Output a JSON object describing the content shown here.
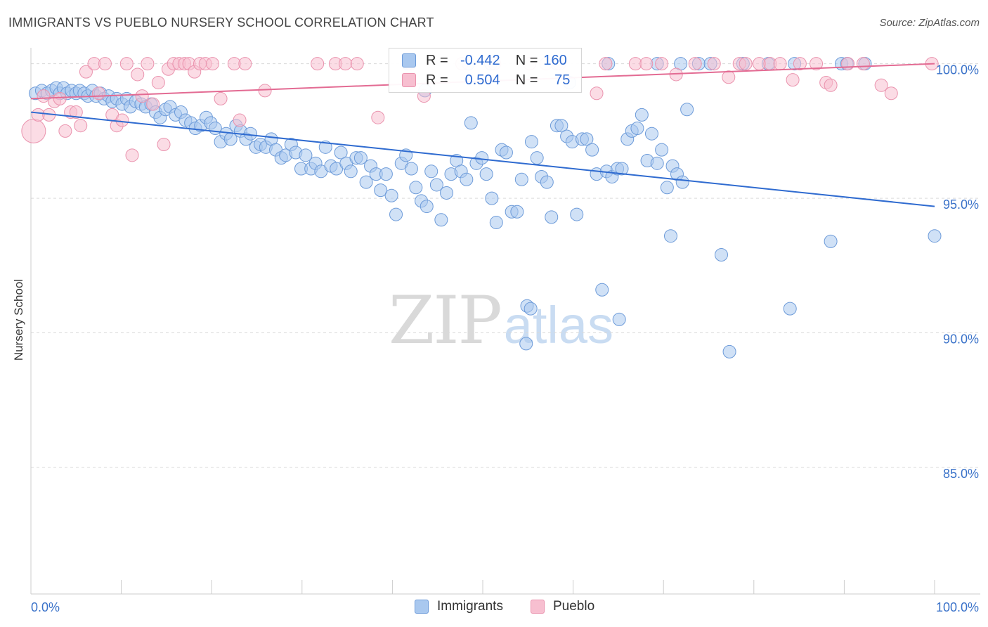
{
  "title": "IMMIGRANTS VS PUEBLO NURSERY SCHOOL CORRELATION CHART",
  "source": "Source: ZipAtlas.com",
  "watermark": {
    "zip": "ZIP",
    "atlas": "atlas"
  },
  "legend": {
    "r_label": "R =",
    "n_label": "N =",
    "immigrants": {
      "r": "-0.442",
      "n": "160"
    },
    "pueblo": {
      "r": "0.504",
      "n": "75"
    }
  },
  "colors": {
    "immigrants_fill": "#a9c8ef",
    "immigrants_stroke": "#6d9bd9",
    "immigrants_line": "#2f6bd0",
    "pueblo_fill": "#f7bfd0",
    "pueblo_stroke": "#ea93ae",
    "pueblo_line": "#e36b93",
    "axis_label": "#3a72c9",
    "grid": "#d9d9d9"
  },
  "chart_data": {
    "type": "scatter",
    "title": "IMMIGRANTS VS PUEBLO NURSERY SCHOOL CORRELATION CHART",
    "xlabel": "",
    "ylabel": "Nursery School",
    "xlim": [
      0,
      100
    ],
    "ylim": [
      80.3,
      100.8
    ],
    "x_tick_labels": [
      {
        "value": 0,
        "label": "0.0%"
      },
      {
        "value": 100,
        "label": "100.0%"
      }
    ],
    "y_tick_labels": [
      {
        "value": 100,
        "label": "100.0%"
      },
      {
        "value": 95,
        "label": "95.0%"
      },
      {
        "value": 90,
        "label": "90.0%"
      },
      {
        "value": 85,
        "label": "85.0%"
      }
    ],
    "series": [
      {
        "name": "Immigrants",
        "r": -0.442,
        "n": 160,
        "trend": {
          "x": [
            0,
            100
          ],
          "y": [
            98.2,
            94.7
          ]
        },
        "points": [
          [
            0.5,
            98.9
          ],
          [
            1.2,
            99.0
          ],
          [
            1.8,
            98.9
          ],
          [
            2.3,
            99.0
          ],
          [
            2.8,
            99.1
          ],
          [
            3.2,
            98.9
          ],
          [
            3.6,
            99.1
          ],
          [
            4.0,
            98.9
          ],
          [
            4.5,
            99.0
          ],
          [
            5.0,
            98.9
          ],
          [
            5.4,
            99.0
          ],
          [
            5.9,
            98.9
          ],
          [
            6.3,
            98.8
          ],
          [
            6.8,
            99.0
          ],
          [
            7.2,
            98.8
          ],
          [
            7.7,
            98.9
          ],
          [
            8.1,
            98.7
          ],
          [
            8.6,
            98.8
          ],
          [
            9.0,
            98.6
          ],
          [
            9.5,
            98.7
          ],
          [
            10.1,
            98.5
          ],
          [
            10.6,
            98.7
          ],
          [
            11.0,
            98.4
          ],
          [
            11.6,
            98.6
          ],
          [
            12.2,
            98.5
          ],
          [
            12.7,
            98.4
          ],
          [
            13.3,
            98.5
          ],
          [
            13.8,
            98.2
          ],
          [
            14.3,
            98.0
          ],
          [
            14.9,
            98.3
          ],
          [
            15.4,
            98.4
          ],
          [
            16.0,
            98.1
          ],
          [
            16.6,
            98.2
          ],
          [
            17.1,
            97.9
          ],
          [
            17.7,
            97.8
          ],
          [
            18.2,
            97.6
          ],
          [
            18.8,
            97.7
          ],
          [
            19.4,
            98.0
          ],
          [
            19.9,
            97.8
          ],
          [
            20.4,
            97.6
          ],
          [
            21.0,
            97.1
          ],
          [
            21.6,
            97.4
          ],
          [
            22.1,
            97.2
          ],
          [
            22.7,
            97.7
          ],
          [
            23.2,
            97.5
          ],
          [
            23.8,
            97.2
          ],
          [
            24.3,
            97.4
          ],
          [
            24.9,
            96.9
          ],
          [
            25.4,
            97.0
          ],
          [
            26.0,
            96.9
          ],
          [
            26.6,
            97.2
          ],
          [
            27.1,
            96.8
          ],
          [
            27.7,
            96.5
          ],
          [
            28.2,
            96.6
          ],
          [
            28.8,
            97.0
          ],
          [
            29.3,
            96.7
          ],
          [
            29.9,
            96.1
          ],
          [
            30.4,
            96.6
          ],
          [
            31.0,
            96.1
          ],
          [
            31.5,
            96.3
          ],
          [
            32.1,
            96.0
          ],
          [
            32.6,
            96.9
          ],
          [
            33.2,
            96.2
          ],
          [
            33.8,
            96.1
          ],
          [
            34.3,
            96.7
          ],
          [
            34.9,
            96.3
          ],
          [
            35.4,
            96.0
          ],
          [
            36.0,
            96.5
          ],
          [
            36.5,
            96.5
          ],
          [
            37.1,
            95.6
          ],
          [
            37.6,
            96.2
          ],
          [
            38.2,
            95.9
          ],
          [
            38.7,
            95.3
          ],
          [
            39.3,
            95.9
          ],
          [
            39.9,
            95.1
          ],
          [
            40.4,
            94.4
          ],
          [
            41.0,
            96.3
          ],
          [
            41.5,
            96.6
          ],
          [
            42.1,
            96.1
          ],
          [
            42.6,
            95.4
          ],
          [
            43.2,
            94.9
          ],
          [
            43.8,
            94.7
          ],
          [
            44.3,
            96.0
          ],
          [
            44.9,
            95.5
          ],
          [
            45.4,
            94.2
          ],
          [
            46.0,
            95.2
          ],
          [
            46.5,
            95.9
          ],
          [
            47.1,
            96.4
          ],
          [
            47.6,
            96.0
          ],
          [
            48.2,
            95.7
          ],
          [
            48.7,
            97.8
          ],
          [
            49.3,
            96.3
          ],
          [
            49.9,
            96.5
          ],
          [
            50.4,
            95.9
          ],
          [
            51.0,
            95.0
          ],
          [
            51.5,
            94.1
          ],
          [
            52.1,
            96.8
          ],
          [
            52.6,
            96.7
          ],
          [
            53.2,
            94.5
          ],
          [
            53.8,
            94.5
          ],
          [
            54.3,
            95.7
          ],
          [
            54.9,
            91.0
          ],
          [
            55.4,
            97.1
          ],
          [
            56.0,
            96.5
          ],
          [
            56.5,
            95.8
          ],
          [
            57.1,
            95.6
          ],
          [
            57.6,
            94.3
          ],
          [
            58.2,
            97.7
          ],
          [
            58.7,
            97.7
          ],
          [
            59.3,
            97.3
          ],
          [
            59.9,
            97.1
          ],
          [
            60.4,
            94.4
          ],
          [
            61.0,
            97.2
          ],
          [
            61.5,
            97.2
          ],
          [
            62.1,
            96.8
          ],
          [
            62.6,
            95.9
          ],
          [
            63.2,
            91.6
          ],
          [
            63.7,
            96.0
          ],
          [
            64.3,
            95.8
          ],
          [
            64.9,
            96.1
          ],
          [
            65.4,
            96.1
          ],
          [
            66.0,
            97.2
          ],
          [
            66.5,
            97.5
          ],
          [
            67.1,
            97.6
          ],
          [
            67.6,
            98.1
          ],
          [
            68.2,
            96.4
          ],
          [
            68.7,
            97.4
          ],
          [
            69.3,
            96.3
          ],
          [
            69.8,
            96.8
          ],
          [
            70.4,
            95.4
          ],
          [
            71.0,
            96.2
          ],
          [
            71.5,
            95.9
          ],
          [
            72.1,
            95.6
          ],
          [
            72.6,
            98.3
          ],
          [
            55.3,
            90.9
          ],
          [
            54.8,
            89.6
          ],
          [
            58.2,
            100.0
          ],
          [
            63.9,
            100.0
          ],
          [
            69.3,
            100.0
          ],
          [
            73.9,
            100.0
          ],
          [
            75.2,
            100.0
          ],
          [
            76.4,
            92.9
          ],
          [
            78.8,
            100.0
          ],
          [
            81.6,
            100.0
          ],
          [
            84.5,
            100.0
          ],
          [
            89.7,
            100.0
          ],
          [
            90.3,
            100.0
          ],
          [
            92.3,
            100.0
          ],
          [
            88.5,
            93.4
          ],
          [
            65.1,
            90.5
          ],
          [
            70.8,
            93.6
          ],
          [
            77.3,
            89.3
          ],
          [
            48.4,
            100.0
          ],
          [
            50.9,
            100.0
          ],
          [
            43.6,
            99.0
          ],
          [
            41.7,
            100.0
          ],
          [
            59.6,
            99.3
          ],
          [
            100.0,
            93.6
          ],
          [
            84.0,
            90.9
          ],
          [
            71.9,
            100.0
          ]
        ]
      },
      {
        "name": "Pueblo",
        "r": 0.504,
        "n": 75,
        "trend": {
          "x": [
            0,
            100
          ],
          "y": [
            98.7,
            100.0
          ]
        },
        "points": [
          [
            0.3,
            97.5
          ],
          [
            0.8,
            98.1
          ],
          [
            1.4,
            98.8
          ],
          [
            2.0,
            98.1
          ],
          [
            2.6,
            98.6
          ],
          [
            3.2,
            98.7
          ],
          [
            3.8,
            97.5
          ],
          [
            4.4,
            98.2
          ],
          [
            5.0,
            98.2
          ],
          [
            5.5,
            97.7
          ],
          [
            6.1,
            99.7
          ],
          [
            7.0,
            100.0
          ],
          [
            8.2,
            100.0
          ],
          [
            9.0,
            98.1
          ],
          [
            9.5,
            97.7
          ],
          [
            10.1,
            97.9
          ],
          [
            10.6,
            100.0
          ],
          [
            11.2,
            96.6
          ],
          [
            11.8,
            99.6
          ],
          [
            12.3,
            98.8
          ],
          [
            12.9,
            100.0
          ],
          [
            13.5,
            98.5
          ],
          [
            14.1,
            99.3
          ],
          [
            14.7,
            97.0
          ],
          [
            15.2,
            99.8
          ],
          [
            15.8,
            100.0
          ],
          [
            16.4,
            100.0
          ],
          [
            17.0,
            100.0
          ],
          [
            17.5,
            100.0
          ],
          [
            18.1,
            99.7
          ],
          [
            18.7,
            100.0
          ],
          [
            19.3,
            100.0
          ],
          [
            20.1,
            100.0
          ],
          [
            21.0,
            98.7
          ],
          [
            22.5,
            100.0
          ],
          [
            23.1,
            97.9
          ],
          [
            23.7,
            100.0
          ],
          [
            25.9,
            99.0
          ],
          [
            31.7,
            100.0
          ],
          [
            33.7,
            100.0
          ],
          [
            34.8,
            100.0
          ],
          [
            36.1,
            100.0
          ],
          [
            38.4,
            98.0
          ],
          [
            42.0,
            100.0
          ],
          [
            43.5,
            98.8
          ],
          [
            47.7,
            100.0
          ],
          [
            51.3,
            100.0
          ],
          [
            55.2,
            100.0
          ],
          [
            57.0,
            100.0
          ],
          [
            58.5,
            100.0
          ],
          [
            62.6,
            98.9
          ],
          [
            63.6,
            100.0
          ],
          [
            66.9,
            100.0
          ],
          [
            68.1,
            100.0
          ],
          [
            69.8,
            100.0
          ],
          [
            71.4,
            99.6
          ],
          [
            73.5,
            100.0
          ],
          [
            75.6,
            100.0
          ],
          [
            77.2,
            99.5
          ],
          [
            78.4,
            100.0
          ],
          [
            79.1,
            100.0
          ],
          [
            80.6,
            100.0
          ],
          [
            81.8,
            100.0
          ],
          [
            82.9,
            100.0
          ],
          [
            84.3,
            99.4
          ],
          [
            85.1,
            100.0
          ],
          [
            86.9,
            100.0
          ],
          [
            88.0,
            99.3
          ],
          [
            88.5,
            99.2
          ],
          [
            90.4,
            100.0
          ],
          [
            92.1,
            100.0
          ],
          [
            94.1,
            99.2
          ],
          [
            95.2,
            98.9
          ],
          [
            99.7,
            100.0
          ],
          [
            7.5,
            98.9
          ]
        ]
      }
    ]
  },
  "bottom_legend": {
    "immigrants": "Immigrants",
    "pueblo": "Pueblo"
  }
}
